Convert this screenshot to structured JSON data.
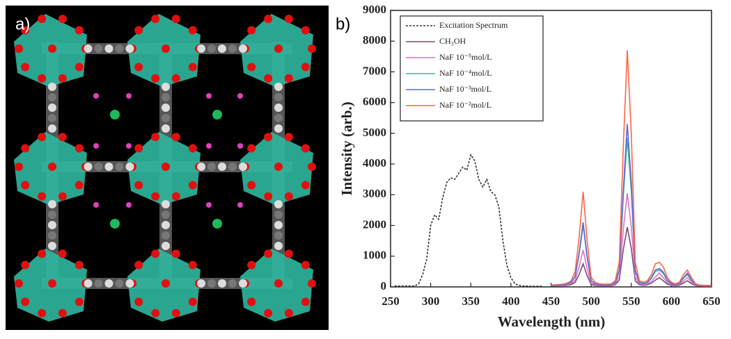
{
  "panel_a": {
    "label": "a)"
  },
  "chart_data": {
    "type": "line",
    "panel_label": "b)",
    "xlabel": "Wavelength (nm)",
    "ylabel": "Intensity (arb.)",
    "xlim": [
      250,
      650
    ],
    "ylim": [
      0,
      9000
    ],
    "xticks": [
      250,
      300,
      350,
      400,
      450,
      500,
      550,
      600,
      650
    ],
    "yticks": [
      0,
      1000,
      2000,
      3000,
      4000,
      5000,
      6000,
      7000,
      8000,
      9000
    ],
    "grid": false,
    "legend": "upper left",
    "x": [
      250,
      255,
      260,
      265,
      270,
      275,
      280,
      285,
      290,
      295,
      300,
      305,
      310,
      315,
      320,
      325,
      330,
      335,
      340,
      345,
      350,
      355,
      360,
      365,
      370,
      375,
      380,
      385,
      390,
      395,
      400,
      405,
      410,
      415,
      420,
      425,
      430,
      435,
      440,
      445,
      450,
      455,
      460,
      465,
      470,
      475,
      480,
      485,
      490,
      495,
      500,
      505,
      510,
      515,
      520,
      525,
      530,
      535,
      540,
      545,
      550,
      555,
      560,
      565,
      570,
      575,
      580,
      585,
      590,
      595,
      600,
      605,
      610,
      615,
      620,
      625,
      630,
      635,
      640,
      645,
      650
    ],
    "series": [
      {
        "name": "Excitation Spectrum",
        "color": "#333333",
        "dashed": true,
        "values": [
          null,
          30,
          30,
          30,
          30,
          30,
          30,
          100,
          400,
          900,
          2000,
          2350,
          2200,
          2900,
          3400,
          3550,
          3500,
          3700,
          3900,
          3800,
          4300,
          4100,
          3500,
          3250,
          3500,
          3100,
          3000,
          2600,
          1500,
          700,
          300,
          100,
          50,
          30,
          30,
          20,
          20,
          20,
          20,
          null,
          null,
          null,
          null,
          null,
          null,
          null,
          null,
          null,
          null,
          null,
          null,
          null,
          null,
          null,
          null,
          null,
          null,
          null,
          null,
          null,
          null,
          null,
          null,
          null,
          null,
          null,
          null,
          null,
          null,
          null,
          null,
          null,
          null,
          null,
          null,
          null,
          null,
          null,
          null,
          null,
          null
        ]
      },
      {
        "name": "CH₃OH",
        "color": "#7a4a78",
        "dashed": false,
        "values": [
          null,
          null,
          null,
          null,
          null,
          null,
          null,
          null,
          null,
          null,
          null,
          null,
          null,
          null,
          null,
          null,
          null,
          null,
          null,
          null,
          null,
          null,
          null,
          null,
          null,
          null,
          null,
          null,
          null,
          null,
          null,
          null,
          null,
          null,
          null,
          null,
          null,
          null,
          null,
          null,
          30,
          30,
          35,
          40,
          50,
          70,
          150,
          400,
          750,
          360,
          80,
          50,
          40,
          35,
          35,
          40,
          70,
          220,
          1200,
          1950,
          1250,
          200,
          70,
          50,
          70,
          120,
          220,
          300,
          200,
          90,
          50,
          40,
          55,
          130,
          200,
          100,
          45,
          30,
          25,
          25,
          25
        ]
      },
      {
        "name": "NaF 10⁻⁵mol/L",
        "color": "#e070c8",
        "dashed": false,
        "values": [
          null,
          null,
          null,
          null,
          null,
          null,
          null,
          null,
          null,
          null,
          null,
          null,
          null,
          null,
          null,
          null,
          null,
          null,
          null,
          null,
          null,
          null,
          null,
          null,
          null,
          null,
          null,
          null,
          null,
          null,
          null,
          null,
          null,
          null,
          null,
          null,
          null,
          null,
          null,
          null,
          40,
          40,
          45,
          50,
          65,
          100,
          220,
          650,
          1200,
          580,
          120,
          70,
          55,
          50,
          50,
          55,
          100,
          330,
          1850,
          3050,
          1950,
          320,
          100,
          70,
          100,
          180,
          320,
          450,
          300,
          140,
          70,
          55,
          80,
          190,
          300,
          150,
          60,
          40,
          35,
          35,
          35
        ]
      },
      {
        "name": "NaF 10⁻⁴mol/L",
        "color": "#3cb49a",
        "dashed": false,
        "values": [
          null,
          null,
          null,
          null,
          null,
          null,
          null,
          null,
          null,
          null,
          null,
          null,
          null,
          null,
          null,
          null,
          null,
          null,
          null,
          null,
          null,
          null,
          null,
          null,
          null,
          null,
          null,
          null,
          null,
          null,
          null,
          null,
          null,
          null,
          null,
          null,
          null,
          null,
          null,
          null,
          45,
          50,
          55,
          65,
          85,
          140,
          330,
          1050,
          2000,
          950,
          190,
          95,
          75,
          65,
          65,
          75,
          140,
          500,
          2900,
          4850,
          3100,
          500,
          140,
          100,
          140,
          280,
          500,
          550,
          440,
          200,
          100,
          75,
          110,
          280,
          400,
          210,
          75,
          45,
          40,
          40,
          40
        ]
      },
      {
        "name": "NaF 10⁻³mol/L",
        "color": "#5a6ad8",
        "dashed": false,
        "values": [
          null,
          null,
          null,
          null,
          null,
          null,
          null,
          null,
          null,
          null,
          null,
          null,
          null,
          null,
          null,
          null,
          null,
          null,
          null,
          null,
          null,
          null,
          null,
          null,
          null,
          null,
          null,
          null,
          null,
          null,
          null,
          null,
          null,
          null,
          null,
          null,
          null,
          null,
          null,
          null,
          50,
          55,
          60,
          70,
          90,
          150,
          350,
          1100,
          2100,
          1000,
          200,
          100,
          80,
          70,
          70,
          80,
          150,
          550,
          3100,
          5300,
          3400,
          550,
          150,
          110,
          150,
          300,
          550,
          600,
          480,
          220,
          110,
          80,
          120,
          300,
          450,
          230,
          80,
          50,
          40,
          40,
          40
        ]
      },
      {
        "name": "NaF 10⁻²mol/L",
        "color": "#ff6444",
        "dashed": false,
        "values": [
          null,
          null,
          null,
          null,
          null,
          null,
          null,
          null,
          null,
          null,
          null,
          null,
          null,
          null,
          null,
          null,
          null,
          null,
          null,
          null,
          null,
          null,
          null,
          null,
          null,
          null,
          null,
          null,
          null,
          null,
          null,
          null,
          null,
          null,
          null,
          null,
          null,
          null,
          null,
          null,
          60,
          70,
          80,
          90,
          120,
          200,
          500,
          1600,
          3100,
          1500,
          300,
          150,
          100,
          90,
          90,
          100,
          200,
          800,
          4500,
          7700,
          5000,
          800,
          200,
          150,
          200,
          400,
          750,
          800,
          650,
          300,
          150,
          100,
          150,
          400,
          550,
          300,
          100,
          60,
          50,
          50,
          50
        ]
      }
    ]
  }
}
